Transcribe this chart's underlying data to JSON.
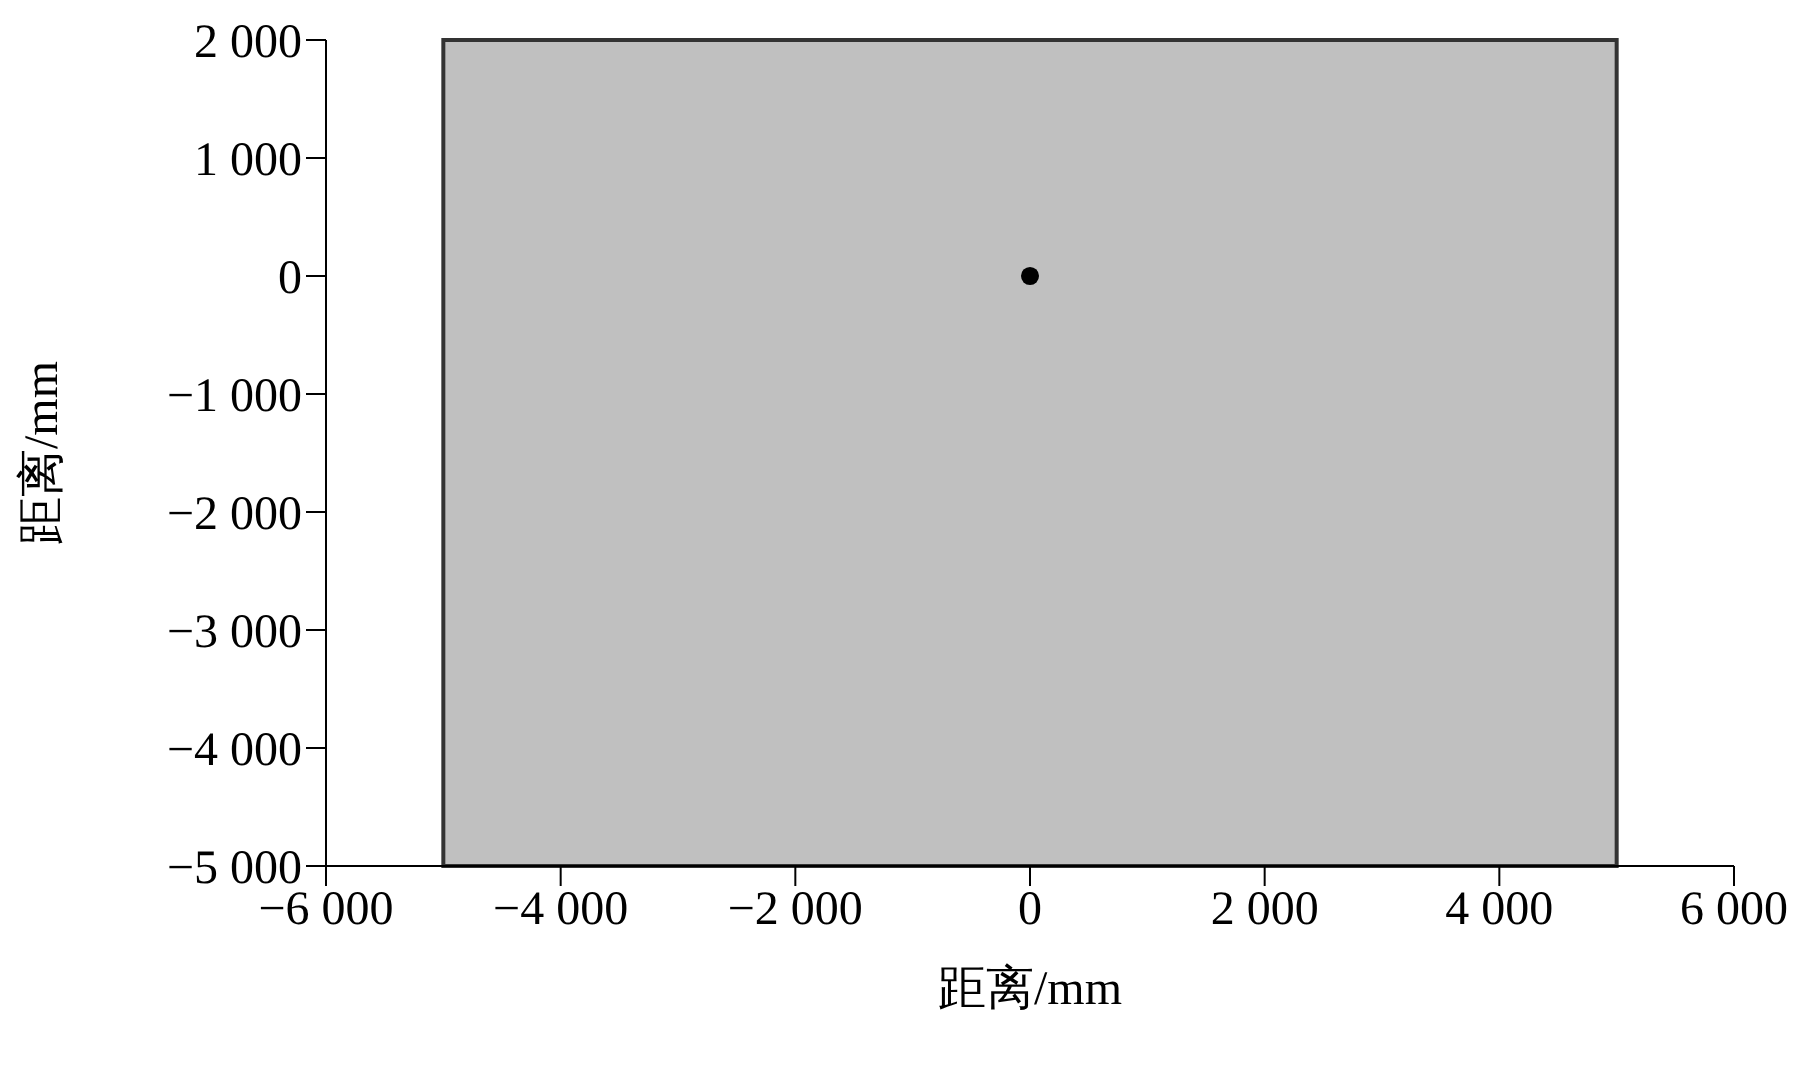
{
  "chart_data": {
    "type": "scatter",
    "xlabel": "距离/mm",
    "ylabel": "距离/mm",
    "x": [
      0
    ],
    "values": [
      0
    ],
    "color": "#000000",
    "marker": "circle",
    "xlim": [
      -6000,
      6000
    ],
    "ylim": [
      -5000,
      2000
    ],
    "xticks": [
      {
        "value": -6000,
        "label": "−6 000"
      },
      {
        "value": -4000,
        "label": "−4 000"
      },
      {
        "value": -2000,
        "label": "−2 000"
      },
      0,
      {
        "value": 2000,
        "label": "2 000"
      },
      {
        "value": 4000,
        "label": "4 000"
      },
      {
        "value": 6000,
        "label": "6 000"
      }
    ],
    "yticks": [
      {
        "value": 2000,
        "label": "2 000"
      },
      {
        "value": 1000,
        "label": "1 000"
      },
      0,
      {
        "value": -1000,
        "label": "−1 000"
      },
      {
        "value": -2000,
        "label": "−2 000"
      },
      {
        "value": -3000,
        "label": "−3 000"
      },
      {
        "value": -4000,
        "label": "−4 000"
      },
      {
        "value": -5000,
        "label": "−5 000"
      }
    ],
    "bands": [
      {
        "axis": "x",
        "from": -5000,
        "to": 5000,
        "color": "#c0c0c0"
      }
    ],
    "grid": false,
    "legend": false
  }
}
